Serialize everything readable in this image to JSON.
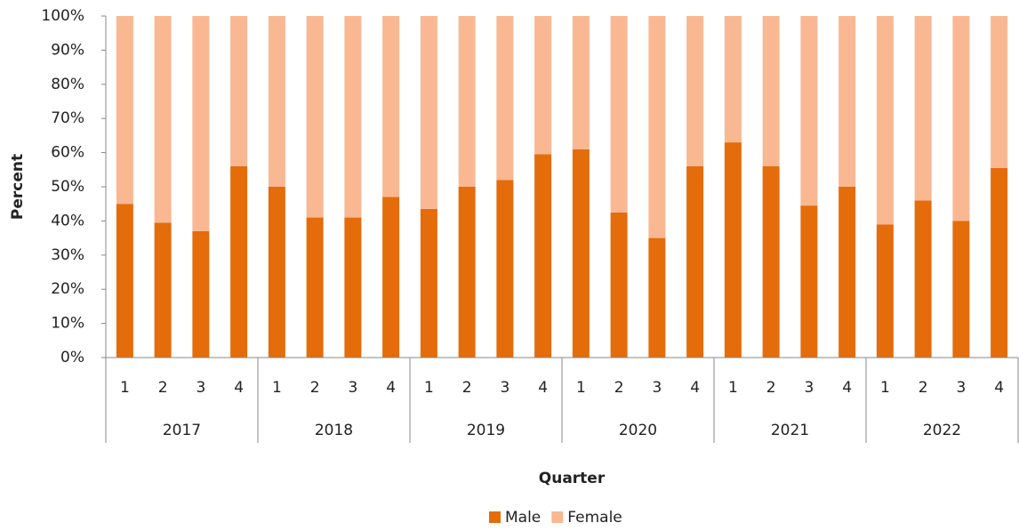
{
  "chart_data": {
    "type": "stacked_bar",
    "x_label": "Quarter",
    "y_label": "Percent",
    "categories": [
      "1",
      "2",
      "3",
      "4",
      "1",
      "2",
      "3",
      "4",
      "1",
      "2",
      "3",
      "4",
      "1",
      "2",
      "3",
      "4",
      "1",
      "2",
      "3",
      "4",
      "1",
      "2",
      "3",
      "4"
    ],
    "groups": [
      "2017",
      "2018",
      "2019",
      "2020",
      "2021",
      "2022"
    ],
    "series": [
      {
        "name": "Male",
        "color": "#e46c0a",
        "values": [
          45,
          39.5,
          37,
          56,
          50,
          41,
          41,
          47,
          43.5,
          50,
          52,
          59.5,
          61,
          42.5,
          35,
          56,
          63,
          56,
          44.5,
          50,
          39,
          46,
          40,
          55.5
        ]
      },
      {
        "name": "Female",
        "color": "#f9b892",
        "values": [
          55,
          60.5,
          63,
          44,
          50,
          59,
          59,
          53,
          56.5,
          50,
          48,
          40.5,
          39,
          57.5,
          65,
          44,
          37,
          44,
          55.5,
          50,
          61,
          54,
          60,
          44.5
        ]
      }
    ],
    "ylim": [
      0,
      100
    ],
    "yticks": [
      {
        "value": 0,
        "label": "0%"
      },
      {
        "value": 10,
        "label": "10%"
      },
      {
        "value": 20,
        "label": "20%"
      },
      {
        "value": 30,
        "label": "30%"
      },
      {
        "value": 40,
        "label": "40%"
      },
      {
        "value": 50,
        "label": "50%"
      },
      {
        "value": 60,
        "label": "60%"
      },
      {
        "value": 70,
        "label": "70%"
      },
      {
        "value": 80,
        "label": "80%"
      },
      {
        "value": 90,
        "label": "90%"
      },
      {
        "value": 100,
        "label": "100%"
      }
    ],
    "legend": "bottom"
  }
}
